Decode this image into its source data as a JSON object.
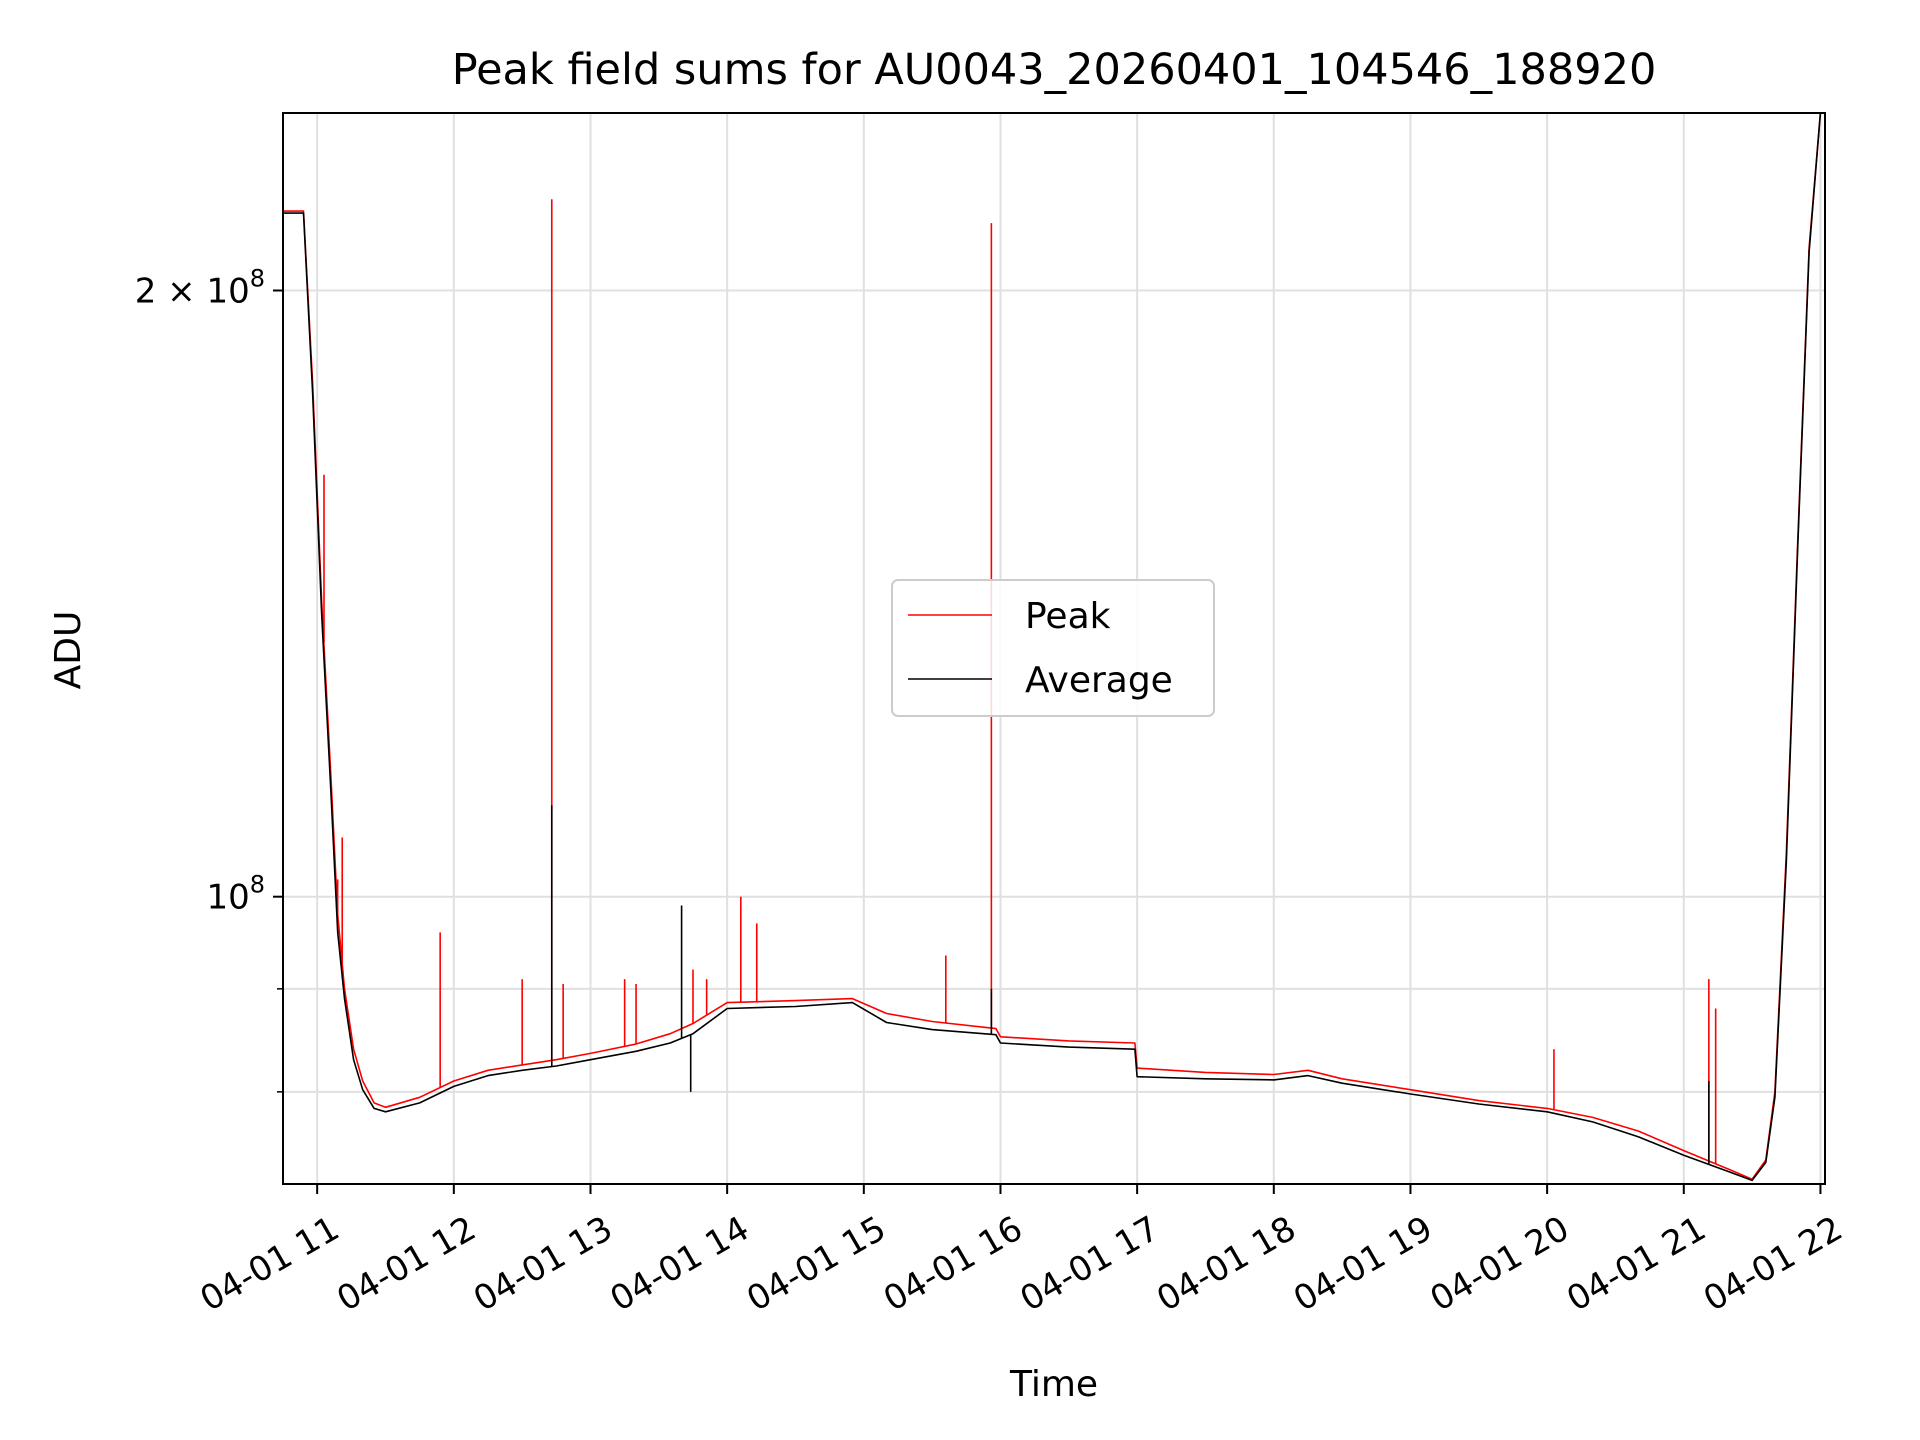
{
  "chart_data": {
    "type": "line",
    "title": "Peak field sums for AU0043_20260401_104546_188920",
    "xlabel": "Time",
    "ylabel": "ADU",
    "yscale": "log",
    "xlim": [
      "2026-04-01 10:45",
      "2026-04-01 22:02"
    ],
    "ylim": [
      72000000,
      245000000
    ],
    "grid": true,
    "legend_position": "center",
    "x_ticks": [
      {
        "value": "2026-04-01 11:00",
        "label": "04-01 11"
      },
      {
        "value": "2026-04-01 12:00",
        "label": "04-01 12"
      },
      {
        "value": "2026-04-01 13:00",
        "label": "04-01 13"
      },
      {
        "value": "2026-04-01 14:00",
        "label": "04-01 14"
      },
      {
        "value": "2026-04-01 15:00",
        "label": "04-01 15"
      },
      {
        "value": "2026-04-01 16:00",
        "label": "04-01 16"
      },
      {
        "value": "2026-04-01 17:00",
        "label": "04-01 17"
      },
      {
        "value": "2026-04-01 18:00",
        "label": "04-01 18"
      },
      {
        "value": "2026-04-01 19:00",
        "label": "04-01 19"
      },
      {
        "value": "2026-04-01 20:00",
        "label": "04-01 20"
      },
      {
        "value": "2026-04-01 21:00",
        "label": "04-01 21"
      },
      {
        "value": "2026-04-01 22:00",
        "label": "04-01 22"
      }
    ],
    "y_major_ticks": [
      {
        "value": 100000000,
        "base": "10",
        "exp": "8",
        "prefix": ""
      },
      {
        "value": 200000000,
        "base": "10",
        "exp": "8",
        "prefix": "2 × "
      }
    ],
    "y_minor_ticks": [
      80000000,
      90000000
    ],
    "series": [
      {
        "name": "Peak",
        "color": "#ff0000",
        "points": [
          [
            "2026-04-01 10:45",
            219000000
          ],
          [
            "2026-04-01 10:54",
            219000000
          ],
          [
            "2026-04-01 10:58",
            180000000
          ],
          [
            "2026-04-01 11:02",
            140000000
          ],
          [
            "2026-04-01 11:06",
            115000000
          ],
          [
            "2026-04-01 11:09",
            98000000
          ],
          [
            "2026-04-01 11:12",
            90000000
          ],
          [
            "2026-04-01 11:16",
            84000000
          ],
          [
            "2026-04-01 11:20",
            81000000
          ],
          [
            "2026-04-01 11:25",
            79000000
          ],
          [
            "2026-04-01 11:30",
            78600000
          ],
          [
            "2026-04-01 11:45",
            79500000
          ],
          [
            "2026-04-01 12:00",
            81000000
          ],
          [
            "2026-04-01 12:15",
            82000000
          ],
          [
            "2026-04-01 12:30",
            82500000
          ],
          [
            "2026-04-01 12:45",
            83000000
          ],
          [
            "2026-04-01 13:00",
            83600000
          ],
          [
            "2026-04-01 13:20",
            84500000
          ],
          [
            "2026-04-01 13:35",
            85500000
          ],
          [
            "2026-04-01 13:45",
            86500000
          ],
          [
            "2026-04-01 14:00",
            88600000
          ],
          [
            "2026-04-01 14:30",
            88800000
          ],
          [
            "2026-04-01 14:55",
            89000000
          ],
          [
            "2026-04-01 15:10",
            87500000
          ],
          [
            "2026-04-01 15:30",
            86700000
          ],
          [
            "2026-04-01 15:58",
            86000000
          ],
          [
            "2026-04-01 16:00",
            85200000
          ],
          [
            "2026-04-01 16:30",
            84800000
          ],
          [
            "2026-04-01 16:59",
            84600000
          ],
          [
            "2026-04-01 17:00",
            82200000
          ],
          [
            "2026-04-01 17:30",
            81800000
          ],
          [
            "2026-04-01 18:00",
            81600000
          ],
          [
            "2026-04-01 18:15",
            82000000
          ],
          [
            "2026-04-01 18:30",
            81200000
          ],
          [
            "2026-04-01 19:00",
            80200000
          ],
          [
            "2026-04-01 19:30",
            79200000
          ],
          [
            "2026-04-01 20:00",
            78500000
          ],
          [
            "2026-04-01 20:20",
            77700000
          ],
          [
            "2026-04-01 20:40",
            76500000
          ],
          [
            "2026-04-01 21:00",
            74800000
          ],
          [
            "2026-04-01 21:20",
            73200000
          ],
          [
            "2026-04-01 21:30",
            72400000
          ],
          [
            "2026-04-01 21:36",
            74000000
          ],
          [
            "2026-04-01 21:40",
            80000000
          ],
          [
            "2026-04-01 21:45",
            105000000
          ],
          [
            "2026-04-01 21:50",
            150000000
          ],
          [
            "2026-04-01 21:55",
            210000000
          ],
          [
            "2026-04-01 22:00",
            245000000
          ]
        ],
        "spikes": [
          [
            "2026-04-01 11:03",
            162000000
          ],
          [
            "2026-04-01 11:09",
            102000000
          ],
          [
            "2026-04-01 11:11",
            107000000
          ],
          [
            "2026-04-01 11:54",
            96000000
          ],
          [
            "2026-04-01 12:30",
            91000000
          ],
          [
            "2026-04-01 12:43",
            222000000
          ],
          [
            "2026-04-01 12:48",
            90500000
          ],
          [
            "2026-04-01 13:15",
            91000000
          ],
          [
            "2026-04-01 13:20",
            90500000
          ],
          [
            "2026-04-01 13:45",
            92000000
          ],
          [
            "2026-04-01 13:51",
            91000000
          ],
          [
            "2026-04-01 14:06",
            100000000
          ],
          [
            "2026-04-01 14:13",
            97000000
          ],
          [
            "2026-04-01 15:36",
            93500000
          ],
          [
            "2026-04-01 15:56",
            216000000
          ],
          [
            "2026-04-01 20:03",
            84000000
          ],
          [
            "2026-04-01 21:11",
            91000000
          ],
          [
            "2026-04-01 21:14",
            88000000
          ]
        ]
      },
      {
        "name": "Average",
        "color": "#000000",
        "points": [
          [
            "2026-04-01 10:45",
            218500000
          ],
          [
            "2026-04-01 10:54",
            218500000
          ],
          [
            "2026-04-01 10:58",
            178000000
          ],
          [
            "2026-04-01 11:02",
            138000000
          ],
          [
            "2026-04-01 11:06",
            113000000
          ],
          [
            "2026-04-01 11:09",
            96000000
          ],
          [
            "2026-04-01 11:12",
            89000000
          ],
          [
            "2026-04-01 11:16",
            83000000
          ],
          [
            "2026-04-01 11:20",
            80200000
          ],
          [
            "2026-04-01 11:25",
            78500000
          ],
          [
            "2026-04-01 11:30",
            78200000
          ],
          [
            "2026-04-01 11:45",
            79000000
          ],
          [
            "2026-04-01 12:00",
            80500000
          ],
          [
            "2026-04-01 12:15",
            81500000
          ],
          [
            "2026-04-01 12:30",
            82000000
          ],
          [
            "2026-04-01 12:45",
            82400000
          ],
          [
            "2026-04-01 13:00",
            83000000
          ],
          [
            "2026-04-01 13:20",
            83800000
          ],
          [
            "2026-04-01 13:35",
            84600000
          ],
          [
            "2026-04-01 13:45",
            85500000
          ],
          [
            "2026-04-01 14:00",
            88000000
          ],
          [
            "2026-04-01 14:30",
            88200000
          ],
          [
            "2026-04-01 14:55",
            88600000
          ],
          [
            "2026-04-01 15:10",
            86600000
          ],
          [
            "2026-04-01 15:30",
            85900000
          ],
          [
            "2026-04-01 15:58",
            85400000
          ],
          [
            "2026-04-01 16:00",
            84600000
          ],
          [
            "2026-04-01 16:30",
            84200000
          ],
          [
            "2026-04-01 16:59",
            84000000
          ],
          [
            "2026-04-01 17:00",
            81400000
          ],
          [
            "2026-04-01 17:30",
            81200000
          ],
          [
            "2026-04-01 18:00",
            81100000
          ],
          [
            "2026-04-01 18:15",
            81500000
          ],
          [
            "2026-04-01 18:30",
            80800000
          ],
          [
            "2026-04-01 19:00",
            79800000
          ],
          [
            "2026-04-01 19:30",
            78900000
          ],
          [
            "2026-04-01 20:00",
            78200000
          ],
          [
            "2026-04-01 20:20",
            77300000
          ],
          [
            "2026-04-01 20:40",
            76000000
          ],
          [
            "2026-04-01 21:00",
            74400000
          ],
          [
            "2026-04-01 21:20",
            73000000
          ],
          [
            "2026-04-01 21:30",
            72300000
          ],
          [
            "2026-04-01 21:36",
            73800000
          ],
          [
            "2026-04-01 21:40",
            79500000
          ],
          [
            "2026-04-01 21:45",
            104000000
          ],
          [
            "2026-04-01 21:50",
            149000000
          ],
          [
            "2026-04-01 21:55",
            209000000
          ],
          [
            "2026-04-01 22:00",
            245000000
          ]
        ],
        "spikes": [
          [
            "2026-04-01 12:43",
            111000000
          ],
          [
            "2026-04-01 13:40",
            99000000
          ],
          [
            "2026-04-01 13:44",
            80000000
          ],
          [
            "2026-04-01 15:56",
            90000000
          ],
          [
            "2026-04-01 21:11",
            81000000
          ]
        ]
      }
    ]
  }
}
